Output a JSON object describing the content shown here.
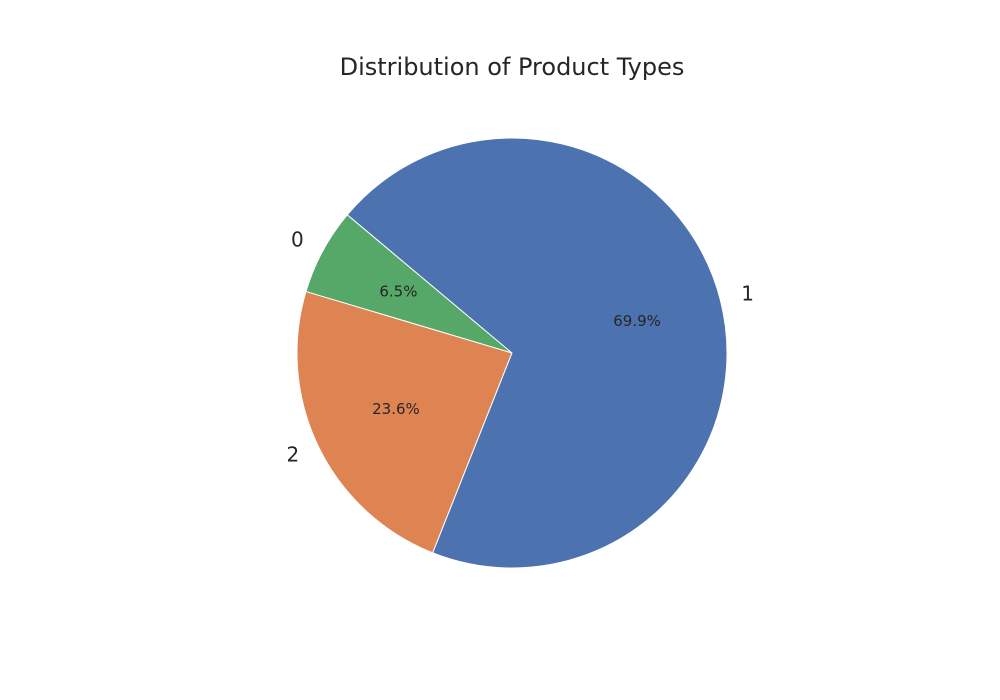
{
  "chart_data": {
    "type": "pie",
    "title": "Distribution of Product Types",
    "slices": [
      {
        "label": "0",
        "value": 6.5,
        "pct_label": "6.5%",
        "color": "#55a868"
      },
      {
        "label": "2",
        "value": 23.6,
        "pct_label": "23.6%",
        "color": "#dd8452"
      },
      {
        "label": "1",
        "value": 69.9,
        "pct_label": "69.9%",
        "color": "#4c72b0"
      }
    ],
    "start_angle_deg": 140,
    "direction": "counterclockwise",
    "slice_edge_color": "#ffffff"
  }
}
